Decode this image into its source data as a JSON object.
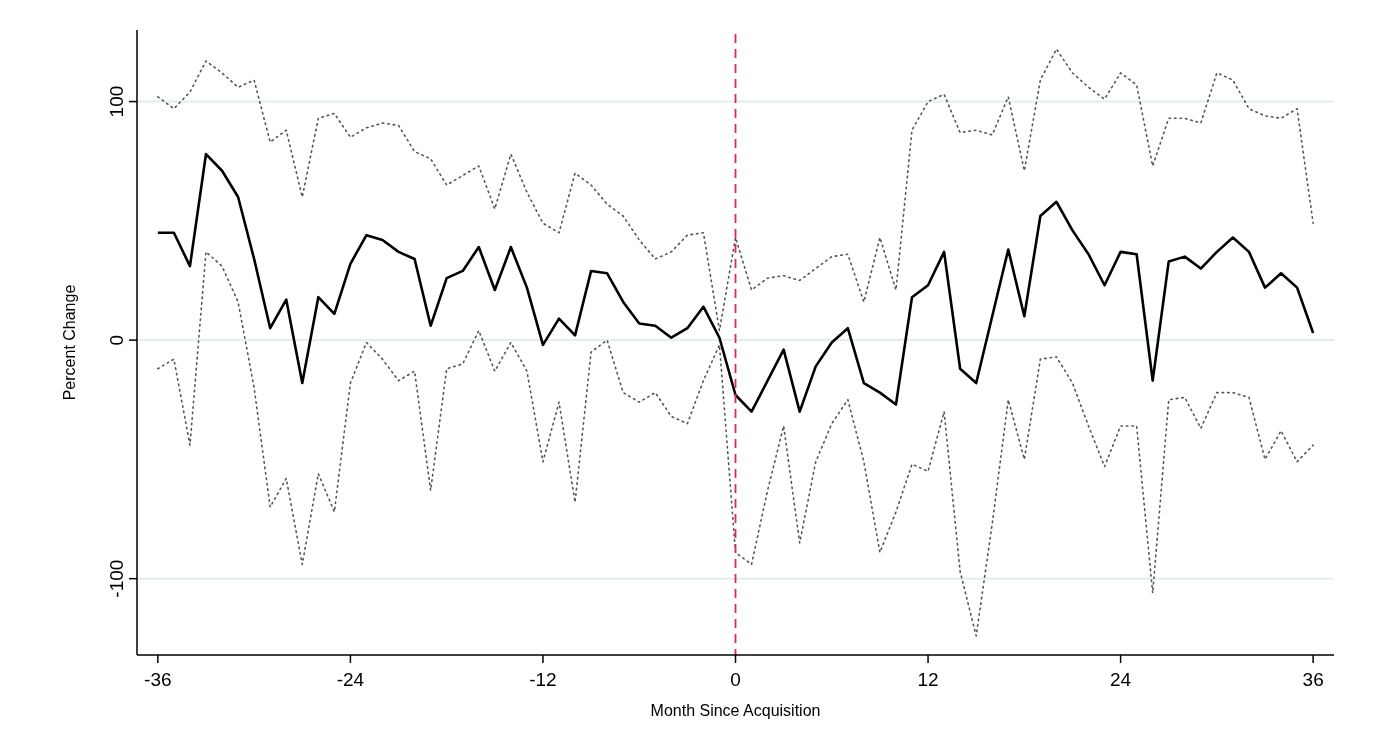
{
  "chart_data": {
    "type": "line",
    "xlabel": "Month Since Acquisition",
    "ylabel": "Percent Change",
    "x": [
      -36,
      -35,
      -34,
      -33,
      -32,
      -31,
      -30,
      -29,
      -28,
      -27,
      -26,
      -25,
      -24,
      -23,
      -22,
      -21,
      -20,
      -19,
      -18,
      -17,
      -16,
      -15,
      -14,
      -13,
      -12,
      -11,
      -10,
      -9,
      -8,
      -7,
      -6,
      -5,
      -4,
      -3,
      -2,
      -1,
      0,
      1,
      2,
      3,
      4,
      5,
      6,
      7,
      8,
      9,
      10,
      11,
      12,
      13,
      14,
      15,
      16,
      17,
      18,
      19,
      20,
      21,
      22,
      23,
      24,
      25,
      26,
      27,
      28,
      29,
      30,
      31,
      32,
      33,
      34,
      35,
      36
    ],
    "series": [
      {
        "color": "#000000",
        "line_style": "solid",
        "values": [
          45,
          45,
          31,
          78,
          71,
          60,
          34,
          5,
          17,
          -18,
          18,
          11,
          32,
          44,
          42,
          37,
          34,
          6,
          26,
          29,
          39,
          21,
          39,
          22,
          -2,
          9,
          2,
          29,
          28,
          16,
          7,
          6,
          1,
          5,
          14,
          1,
          -23,
          -30,
          -17,
          -4,
          -30,
          -11,
          -1,
          5,
          -18,
          -22,
          -27,
          18,
          23,
          37,
          -12,
          -18,
          10,
          38,
          10,
          52,
          58,
          46,
          36,
          23,
          37,
          36,
          -17,
          33,
          35,
          30,
          37,
          43,
          37,
          22,
          28,
          22,
          3
        ]
      },
      {
        "color": "#555555",
        "line_style": "dotted",
        "values": [
          102,
          97,
          104,
          117,
          112,
          106,
          109,
          83,
          88,
          60,
          93,
          95,
          85,
          89,
          91,
          90,
          79,
          76,
          65,
          69,
          73,
          55,
          78,
          62,
          49,
          45,
          70,
          65,
          57,
          52,
          42,
          34,
          37,
          44,
          45,
          4,
          43,
          21,
          26,
          27,
          25,
          30,
          35,
          36,
          16,
          43,
          21,
          88,
          100,
          103,
          87,
          88,
          86,
          102,
          71,
          109,
          122,
          112,
          106,
          101,
          112,
          107,
          73,
          93,
          93,
          91,
          112,
          109,
          97,
          94,
          93,
          97,
          49
        ]
      },
      {
        "color": "#555555",
        "line_style": "dotted",
        "values": [
          -12,
          -8,
          -44,
          37,
          31,
          16,
          -20,
          -70,
          -58,
          -94,
          -56,
          -72,
          -18,
          -1,
          -8,
          -17,
          -13,
          -63,
          -12,
          -10,
          4,
          -13,
          -1,
          -13,
          -51,
          -26,
          -68,
          -5,
          0,
          -22,
          -26,
          -22,
          -32,
          -35,
          -17,
          -2,
          -89,
          -94,
          -63,
          -36,
          -85,
          -51,
          -35,
          -25,
          -51,
          -89,
          -72,
          -52,
          -55,
          -30,
          -97,
          -124,
          -77,
          -25,
          -50,
          -8,
          -7,
          -18,
          -36,
          -53,
          -36,
          -36,
          -106,
          -25,
          -24,
          -37,
          -22,
          -22,
          -24,
          -50,
          -38,
          -51,
          -44
        ]
      }
    ],
    "xlim": [
      -37.3,
      37.3
    ],
    "xticks": [
      -36,
      -24,
      -12,
      0,
      12,
      24,
      36
    ],
    "ylim": [
      -132,
      130
    ],
    "yticks": [
      -100,
      0,
      100
    ],
    "grid": "y",
    "ref_lines": [
      {
        "axis": "x",
        "value": 0,
        "color": "#d62c56",
        "line_style": "dashed"
      }
    ]
  }
}
